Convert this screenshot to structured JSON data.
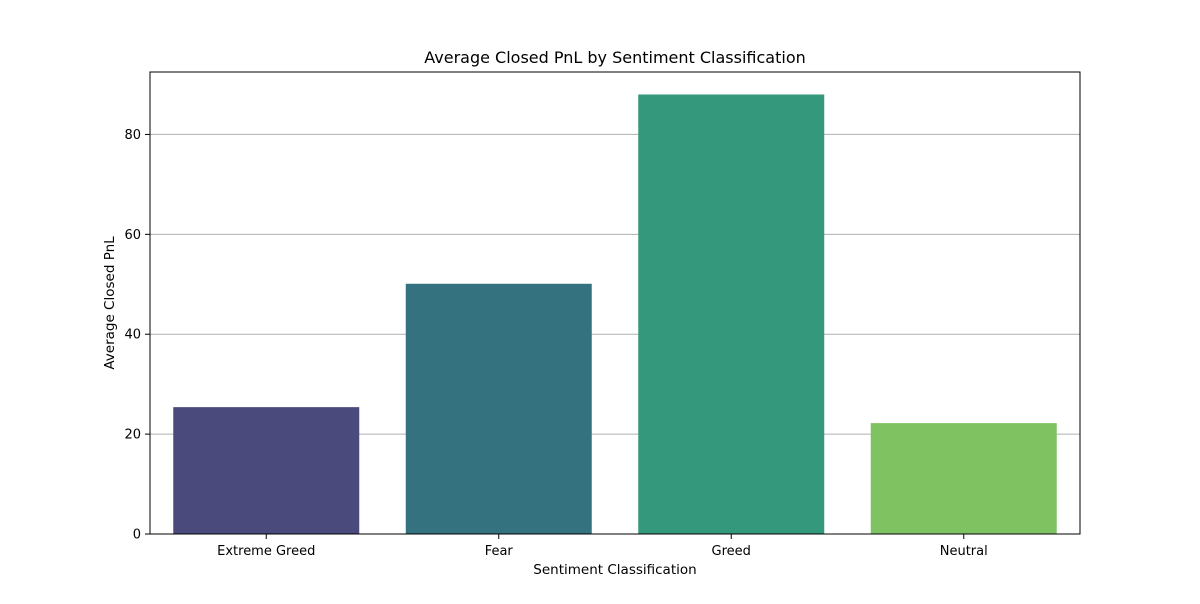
{
  "chart_data": {
    "type": "bar",
    "title": "Average Closed PnL by Sentiment Classification",
    "xlabel": "Sentiment Classification",
    "ylabel": "Average Closed PnL",
    "categories": [
      "Extreme Greed",
      "Fear",
      "Greed",
      "Neutral"
    ],
    "values": [
      25.4,
      50.1,
      88.0,
      22.2
    ],
    "colors": [
      "#4a4b7c",
      "#357280",
      "#34997c",
      "#7fc262"
    ],
    "ylim": [
      0,
      92.5
    ],
    "yticks": [
      0,
      20,
      40,
      60,
      80
    ],
    "grid": "horizontal",
    "legend": "none"
  }
}
